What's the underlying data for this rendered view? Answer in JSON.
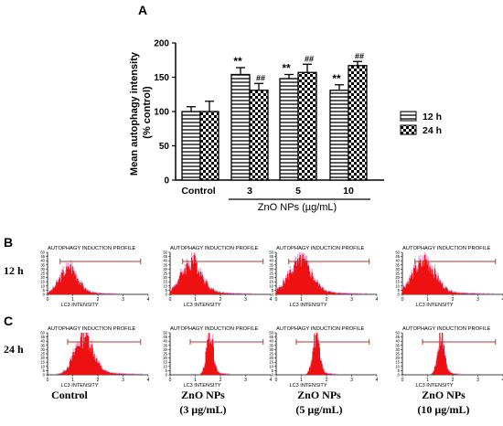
{
  "panel_labels": {
    "a": "A",
    "b": "B",
    "c": "C"
  },
  "row_labels": {
    "r12": "12 h",
    "r24": "24 h"
  },
  "colors": {
    "bar_edge": "#000000",
    "hist_fill": "#ee1111",
    "hist_halo": "#f4a0d8",
    "range_marker": "#b03a2e"
  },
  "chart_data": [
    {
      "type": "bar",
      "panel": "A",
      "ylabel": "Mean autophagy intensity\n(% control)",
      "ylim": [
        0,
        200
      ],
      "yticks": [
        "0",
        "50",
        "100",
        "150",
        "200"
      ],
      "categories": [
        "Control",
        "3",
        "5",
        "10"
      ],
      "group_label": "ZnO NPs (µg/mL)",
      "series": [
        {
          "name": "12 h",
          "pattern": "horizontal-stripes",
          "values": [
            100,
            154,
            148,
            131
          ],
          "errors": [
            7,
            10,
            6,
            8
          ],
          "marks": [
            "",
            "**",
            "**",
            "**"
          ]
        },
        {
          "name": "24 h",
          "pattern": "checkered",
          "values": [
            100,
            131,
            157,
            167
          ],
          "errors": [
            15,
            10,
            12,
            6
          ],
          "marks": [
            "",
            "##",
            "##",
            "##"
          ]
        }
      ],
      "legend": "right"
    },
    {
      "type": "histogram",
      "panel": "B/C",
      "plot_title": "AUTOPHAGY INDUCTION PROFILE",
      "xlabel": "LC3 INTENSITY",
      "xticks": [
        "0",
        "1",
        "2",
        "3",
        "4"
      ],
      "yticks": [
        "0",
        "5",
        "10",
        "15",
        "20",
        "25",
        "30",
        "35",
        "40",
        "45",
        "50"
      ],
      "columns": [
        "Control",
        "ZnO NPs\n(3 μg/mL)",
        "ZnO NPs\n(5 μg/mL)",
        "ZnO NPs\n(10 μg/mL)"
      ],
      "rows": [
        {
          "label": "12 h",
          "peaks": [
            {
              "center": 0.8,
              "width": 0.35,
              "height": 30
            },
            {
              "center": 0.8,
              "width": 0.4,
              "height": 37
            },
            {
              "center": 0.9,
              "width": 0.45,
              "height": 37
            },
            {
              "center": 0.8,
              "width": 0.45,
              "height": 37
            }
          ],
          "marker_range": [
            0.5,
            3.7
          ]
        },
        {
          "label": "24 h",
          "peaks": [
            {
              "center": 1.4,
              "width": 0.35,
              "height": 45
            },
            {
              "center": 1.55,
              "width": 0.13,
              "height": 45
            },
            {
              "center": 1.55,
              "width": 0.13,
              "height": 45
            },
            {
              "center": 1.5,
              "width": 0.13,
              "height": 45
            }
          ],
          "marker_range": [
            0.8,
            3.7
          ]
        }
      ]
    }
  ]
}
